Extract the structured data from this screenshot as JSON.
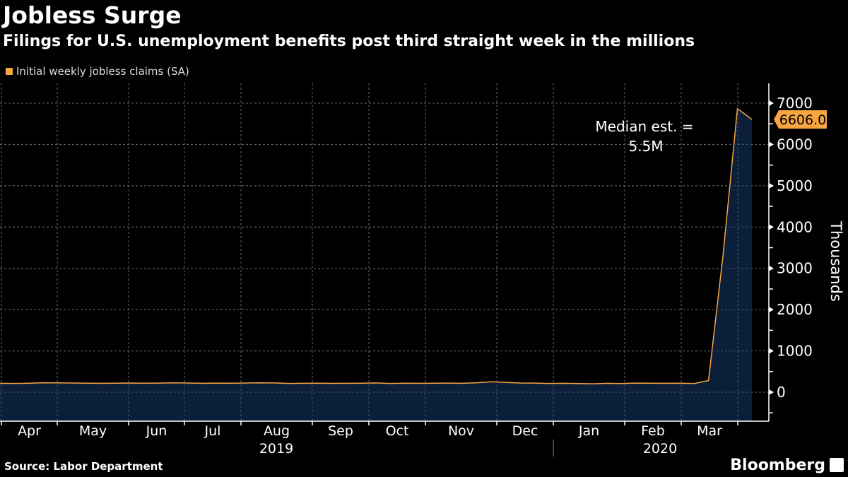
{
  "header": {
    "title": "Jobless Surge",
    "subtitle": "Filings for U.S. unemployment benefits post third straight week in the millions"
  },
  "footer": {
    "source": "Source: Labor Department",
    "brand": "Bloomberg"
  },
  "colors": {
    "line": "#f7a541",
    "area": "#0b1f3a",
    "background": "#000000",
    "label_bg": "#f7a541"
  },
  "chart_data": {
    "type": "area",
    "title": "Jobless Surge",
    "subtitle": "Filings for U.S. unemployment benefits post third straight week in the millions",
    "legend": [
      "Initial weekly jobless claims (SA)"
    ],
    "legend_position": "top-left",
    "ylabel": "Thousands",
    "ylim": [
      -700,
      7300
    ],
    "yticks": [
      0,
      1000,
      2000,
      3000,
      4000,
      5000,
      6000,
      7000
    ],
    "ytick_labels": [
      "0",
      "1000",
      "2000",
      "3000",
      "4000",
      "5000",
      "6000",
      "7000"
    ],
    "month_labels": [
      "Apr",
      "May",
      "Jun",
      "Jul",
      "Aug",
      "Sep",
      "Oct",
      "Nov",
      "Dec",
      "Jan",
      "Feb",
      "Mar"
    ],
    "year_labels": [
      "2019",
      "2020"
    ],
    "last_value_label": "6606.0",
    "annotation": [
      "Median est. =",
      "5.5M"
    ],
    "grid": true,
    "series": [
      {
        "name": "Initial weekly jobless claims (SA)",
        "values": [
          215,
          212,
          218,
          230,
          228,
          222,
          219,
          215,
          218,
          222,
          218,
          221,
          227,
          222,
          216,
          220,
          218,
          222,
          227,
          224,
          212,
          215,
          219,
          214,
          216,
          218,
          224,
          213,
          219,
          216,
          219,
          220,
          215,
          229,
          252,
          235,
          222,
          220,
          212,
          216,
          211,
          204,
          216,
          211,
          220,
          219,
          216,
          219,
          211,
          282,
          3307,
          6867,
          6606
        ]
      }
    ]
  }
}
